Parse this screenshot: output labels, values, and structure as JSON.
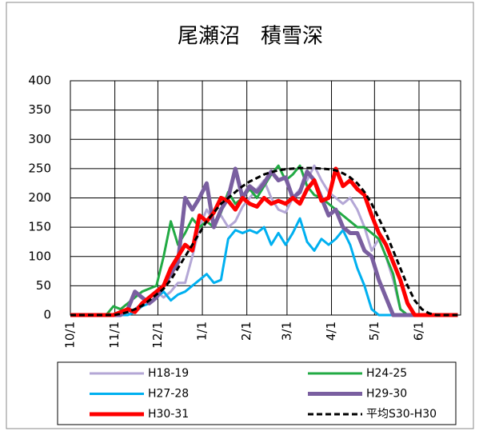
{
  "chart_data": {
    "type": "line",
    "title": "尾瀬沼　積雪深",
    "x": [
      0,
      5,
      10,
      15,
      20,
      25,
      30,
      35,
      40,
      45,
      50,
      55,
      60,
      65,
      70,
      75,
      80,
      85,
      90,
      95,
      100,
      105,
      110,
      115,
      120,
      125,
      130,
      135,
      140,
      145,
      150,
      155,
      160,
      165,
      170,
      175,
      180,
      185,
      190,
      195,
      200,
      205,
      210,
      215,
      220,
      225,
      230,
      235,
      240,
      245,
      250,
      255,
      260,
      265,
      270
    ],
    "xlim": [
      0,
      272
    ],
    "xticks": [
      {
        "value": 0,
        "label": "10/1"
      },
      {
        "value": 31,
        "label": "11/1"
      },
      {
        "value": 61,
        "label": "12/1"
      },
      {
        "value": 92,
        "label": "1/1"
      },
      {
        "value": 123,
        "label": "2/1"
      },
      {
        "value": 151,
        "label": "3/1"
      },
      {
        "value": 182,
        "label": "4/1"
      },
      {
        "value": 212,
        "label": "5/1"
      },
      {
        "value": 243,
        "label": "6/1"
      }
    ],
    "ylim": [
      0,
      400
    ],
    "yticks": [
      0,
      50,
      100,
      150,
      200,
      250,
      300,
      350,
      400
    ],
    "grid": true,
    "legend": "bottom",
    "series": [
      {
        "name": "H18-19",
        "color": "#b4a7d6",
        "style": "solid",
        "values": [
          0,
          0,
          0,
          0,
          0,
          0,
          0,
          0,
          0,
          10,
          20,
          30,
          40,
          30,
          40,
          55,
          55,
          100,
          150,
          180,
          160,
          170,
          150,
          160,
          185,
          200,
          215,
          230,
          200,
          180,
          175,
          200,
          215,
          230,
          255,
          230,
          210,
          200,
          190,
          200,
          180,
          150,
          110,
          130,
          100,
          60,
          10,
          0,
          0,
          0,
          0,
          0,
          0,
          0,
          0
        ]
      },
      {
        "name": "H24-25",
        "color": "#22aa44",
        "style": "solid",
        "values": [
          0,
          0,
          0,
          0,
          0,
          0,
          15,
          10,
          20,
          30,
          40,
          45,
          50,
          100,
          160,
          120,
          140,
          165,
          150,
          160,
          150,
          175,
          210,
          190,
          200,
          215,
          200,
          220,
          240,
          255,
          230,
          240,
          255,
          220,
          205,
          200,
          190,
          180,
          170,
          160,
          150,
          150,
          140,
          130,
          100,
          70,
          10,
          0,
          0,
          0,
          0,
          0,
          0,
          0,
          0
        ]
      },
      {
        "name": "H27-28",
        "color": "#00b0f0",
        "style": "solid",
        "values": [
          0,
          0,
          0,
          0,
          0,
          0,
          0,
          0,
          0,
          5,
          15,
          20,
          30,
          40,
          25,
          35,
          40,
          50,
          60,
          70,
          55,
          60,
          130,
          145,
          140,
          145,
          140,
          150,
          120,
          140,
          120,
          140,
          165,
          125,
          110,
          130,
          120,
          130,
          145,
          120,
          80,
          50,
          10,
          0,
          0,
          0,
          0,
          0,
          0,
          0,
          0,
          0,
          0,
          0,
          0
        ]
      },
      {
        "name": "H29-30",
        "color": "#7a5fa0",
        "style": "thick",
        "values": [
          0,
          0,
          0,
          0,
          0,
          0,
          0,
          0,
          10,
          40,
          30,
          20,
          30,
          50,
          70,
          90,
          200,
          180,
          200,
          225,
          150,
          180,
          200,
          250,
          200,
          220,
          210,
          225,
          245,
          230,
          235,
          200,
          210,
          245,
          230,
          200,
          170,
          180,
          150,
          140,
          140,
          110,
          100,
          60,
          30,
          0,
          0,
          0,
          0,
          0,
          0,
          0,
          0,
          0,
          0
        ]
      },
      {
        "name": "H30-31",
        "color": "#ff0000",
        "style": "thick",
        "values": [
          0,
          0,
          0,
          0,
          0,
          0,
          0,
          5,
          10,
          5,
          20,
          30,
          40,
          50,
          80,
          100,
          120,
          110,
          170,
          160,
          175,
          200,
          195,
          180,
          200,
          190,
          185,
          200,
          190,
          195,
          190,
          200,
          190,
          215,
          230,
          195,
          200,
          250,
          220,
          230,
          215,
          205,
          170,
          140,
          120,
          90,
          60,
          20,
          0,
          0,
          0,
          0,
          0,
          0,
          0
        ]
      },
      {
        "name": "平均S30-H30",
        "color": "#000000",
        "style": "dashed",
        "values": [
          0,
          0,
          0,
          0,
          0,
          0,
          0,
          2,
          5,
          10,
          16,
          25,
          35,
          45,
          60,
          80,
          100,
          120,
          140,
          160,
          175,
          190,
          200,
          210,
          220,
          228,
          234,
          240,
          244,
          247,
          249,
          250,
          251,
          251,
          251,
          250,
          249,
          247,
          242,
          235,
          225,
          210,
          190,
          165,
          140,
          110,
          80,
          50,
          25,
          10,
          3,
          0,
          0,
          0,
          0
        ]
      }
    ]
  }
}
